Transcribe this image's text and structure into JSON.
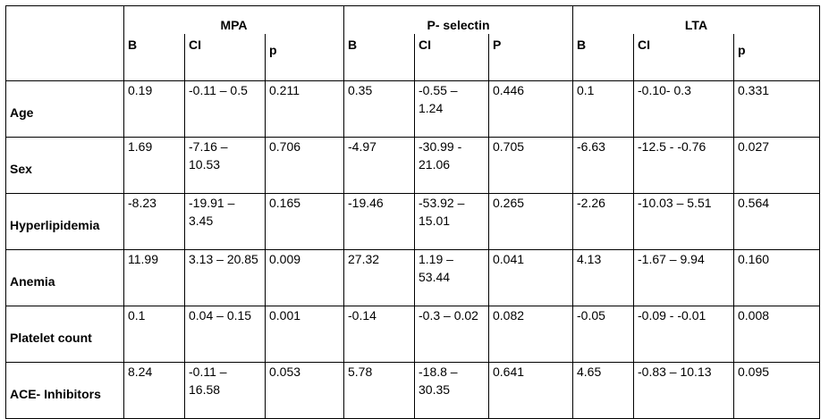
{
  "groups": [
    "MPA",
    "P- selectin",
    "LTA"
  ],
  "subheaders": [
    [
      "B",
      "CI",
      "p"
    ],
    [
      "B",
      "CI",
      "P"
    ],
    [
      "B",
      "CI",
      "p"
    ]
  ],
  "rows": [
    {
      "label": "Age",
      "cells": [
        [
          "0.19",
          "-0.11 – 0.5",
          "0.211"
        ],
        [
          "0.35",
          "-0.55 – 1.24",
          "0.446"
        ],
        [
          "0.1",
          "-0.10- 0.3",
          "0.331"
        ]
      ]
    },
    {
      "label": "Sex",
      "cells": [
        [
          "1.69",
          "-7.16 – 10.53",
          "0.706"
        ],
        [
          "-4.97",
          "-30.99 - 21.06",
          "0.705"
        ],
        [
          "-6.63",
          "-12.5 - -0.76",
          "0.027"
        ]
      ]
    },
    {
      "label": "Hyperlipidemia",
      "cells": [
        [
          "-8.23",
          "-19.91 – 3.45",
          "0.165"
        ],
        [
          "-19.46",
          "-53.92 – 15.01",
          "0.265"
        ],
        [
          "-2.26",
          "-10.03 – 5.51",
          "0.564"
        ]
      ]
    },
    {
      "label": "Anemia",
      "cells": [
        [
          "11.99",
          "3.13 – 20.85",
          "0.009"
        ],
        [
          "27.32",
          "1.19 – 53.44",
          "0.041"
        ],
        [
          "4.13",
          "-1.67 – 9.94",
          "0.160"
        ]
      ]
    },
    {
      "label": "Platelet count",
      "cells": [
        [
          "0.1",
          "0.04 – 0.15",
          "0.001"
        ],
        [
          "-0.14",
          "-0.3 – 0.02",
          "0.082"
        ],
        [
          "-0.05",
          "-0.09 - -0.01",
          "0.008"
        ]
      ]
    },
    {
      "label": "ACE- Inhibitors",
      "cells": [
        [
          "8.24",
          "-0.11 – 16.58",
          "0.053"
        ],
        [
          "5.78",
          "-18.8 – 30.35",
          "0.641"
        ],
        [
          "4.65",
          "-0.83 – 10.13",
          "0.095"
        ]
      ]
    }
  ]
}
